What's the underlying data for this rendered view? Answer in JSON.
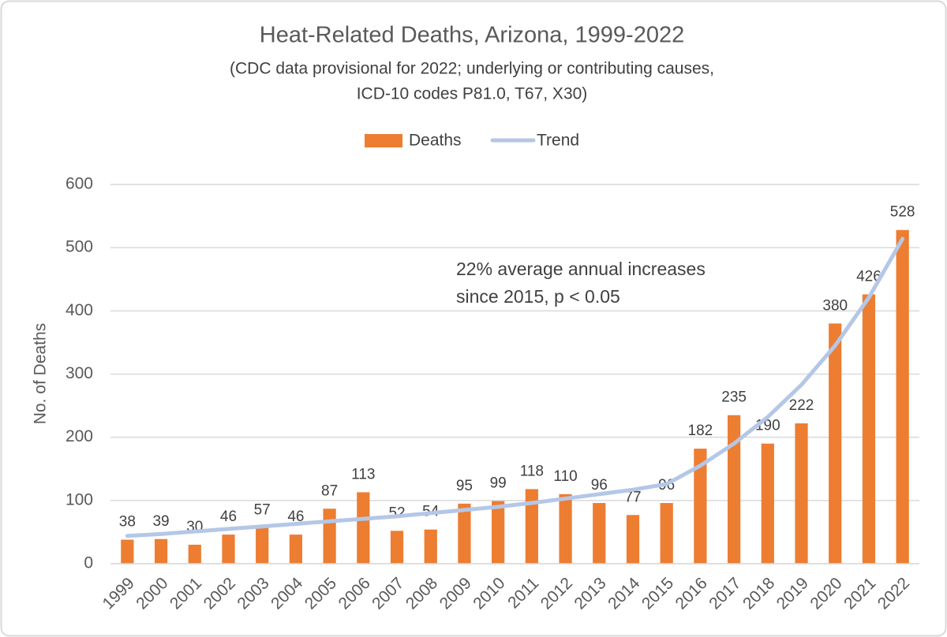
{
  "chart_data": {
    "type": "bar",
    "title": "Heat-Related Deaths, Arizona, 1999-2022",
    "subtitle": [
      "(CDC data provisional for 2022; underlying or contributing causes,",
      "ICD-10 codes P81.0, T67, X30)"
    ],
    "y_label": "No. of Deaths",
    "annotation": [
      "22% average annual increases",
      "since 2015, p < 0.05"
    ],
    "categories": [
      "1999",
      "2000",
      "2001",
      "2002",
      "2003",
      "2004",
      "2005",
      "2006",
      "2007",
      "2008",
      "2009",
      "2010",
      "2011",
      "2012",
      "2013",
      "2014",
      "2015",
      "2016",
      "2017",
      "2018",
      "2019",
      "2020",
      "2021",
      "2022"
    ],
    "series": [
      {
        "name": "Deaths",
        "type": "bar",
        "color": "#ed7d31",
        "values": [
          38,
          39,
          30,
          46,
          57,
          46,
          87,
          113,
          52,
          54,
          95,
          99,
          118,
          110,
          96,
          77,
          96,
          182,
          235,
          190,
          222,
          380,
          426,
          528
        ]
      },
      {
        "name": "Trend",
        "type": "line",
        "color": "#b4c7e7",
        "values": [
          44,
          47,
          51,
          55,
          59,
          63,
          67,
          71,
          75,
          80,
          85,
          90,
          96,
          103,
          110,
          117,
          126,
          155,
          190,
          232,
          283,
          345,
          421,
          514
        ]
      }
    ],
    "ylim": [
      0,
      600
    ],
    "yticks": [
      0,
      100,
      200,
      300,
      400,
      500,
      600
    ],
    "grid": true
  }
}
